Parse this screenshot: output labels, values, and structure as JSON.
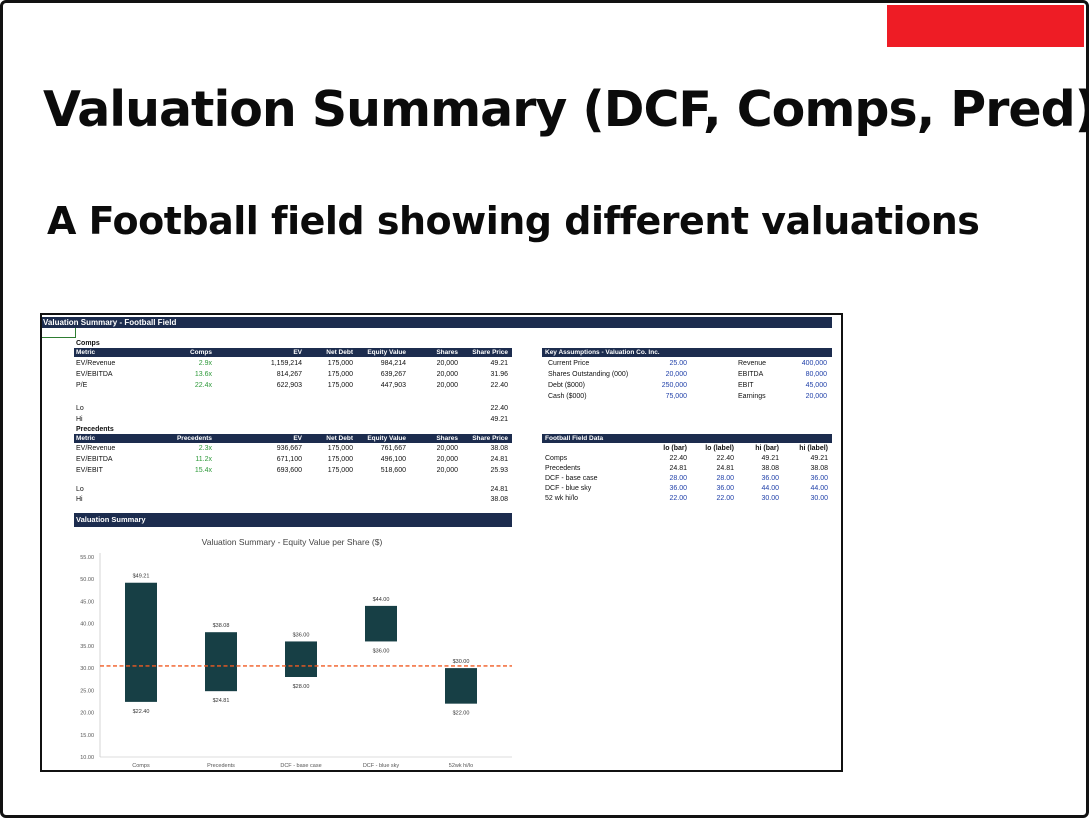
{
  "slide": {
    "title": "Valuation Summary (DCF, Comps, Pred)",
    "subtitle": "A Football field showing different valuations",
    "accent_color": "#ee1c25"
  },
  "sheet": {
    "header": "Valuation Summary - Football Field",
    "comps": {
      "section_label": "Comps",
      "columns": [
        "Metric",
        "Comps",
        "EV",
        "Net Debt",
        "Equity Value",
        "Shares",
        "Share Price"
      ],
      "rows": [
        [
          "EV/Revenue",
          "2.9x",
          "1,159,214",
          "175,000",
          "984,214",
          "20,000",
          "49.21"
        ],
        [
          "EV/EBITDA",
          "13.6x",
          "814,267",
          "175,000",
          "639,267",
          "20,000",
          "31.96"
        ],
        [
          "P/E",
          "22.4x",
          "622,903",
          "175,000",
          "447,903",
          "20,000",
          "22.40"
        ]
      ],
      "lo_label": "Lo",
      "lo_value": "22.40",
      "hi_label": "Hi",
      "hi_value": "49.21"
    },
    "precedents": {
      "section_label": "Precedents",
      "columns": [
        "Metric",
        "Precedents",
        "EV",
        "Net Debt",
        "Equity Value",
        "Shares",
        "Share Price"
      ],
      "rows": [
        [
          "EV/Revenue",
          "2.3x",
          "936,667",
          "175,000",
          "761,667",
          "20,000",
          "38.08"
        ],
        [
          "EV/EBITDA",
          "11.2x",
          "671,100",
          "175,000",
          "496,100",
          "20,000",
          "24.81"
        ],
        [
          "EV/EBIT",
          "15.4x",
          "693,600",
          "175,000",
          "518,600",
          "20,000",
          "25.93"
        ]
      ],
      "lo_label": "Lo",
      "lo_value": "24.81",
      "hi_label": "Hi",
      "hi_value": "38.08"
    },
    "assumptions": {
      "header": "Key Assumptions - Valuation Co. Inc.",
      "rows": [
        [
          "Current Price",
          "25.00",
          "Revenue",
          "400,000"
        ],
        [
          "Shares Outstanding (000)",
          "20,000",
          "EBITDA",
          "80,000"
        ],
        [
          "Debt ($000)",
          "250,000",
          "EBIT",
          "45,000"
        ],
        [
          "Cash ($000)",
          "75,000",
          "Earnings",
          "20,000"
        ]
      ]
    },
    "football_field": {
      "header": "Football Field Data",
      "columns": [
        "lo (bar)",
        "lo  (label)",
        "hi (bar)",
        "hi (label)"
      ],
      "rows": [
        [
          "Comps",
          "22.40",
          "22.40",
          "49.21",
          "49.21"
        ],
        [
          "Precedents",
          "24.81",
          "24.81",
          "38.08",
          "38.08"
        ],
        [
          "DCF - base case",
          "28.00",
          "28.00",
          "36.00",
          "36.00"
        ],
        [
          "DCF - blue sky",
          "36.00",
          "36.00",
          "44.00",
          "44.00"
        ],
        [
          "52 wk hi/lo",
          "22.00",
          "22.00",
          "30.00",
          "30.00"
        ]
      ]
    },
    "summary_band": "Valuation Summary"
  },
  "chart_data": {
    "type": "bar",
    "title": "Valuation Summary - Equity Value per Share ($)",
    "categories": [
      "Comps",
      "Precedents",
      "DCF - base case",
      "DCF - blue sky",
      "52wk hi/lo"
    ],
    "series": [
      {
        "name": "lo",
        "values": [
          22.4,
          24.81,
          28.0,
          36.0,
          22.0
        ]
      },
      {
        "name": "hi",
        "values": [
          49.21,
          38.08,
          36.0,
          44.0,
          30.0
        ]
      }
    ],
    "lo_labels": [
      "$22.40",
      "$24.81",
      "$28.00",
      "$36.00",
      "$22.00"
    ],
    "hi_labels": [
      "$49.21",
      "$38.08",
      "$36.00",
      "$44.00",
      "$30.00"
    ],
    "reference_line": 30.5,
    "ylim": [
      10,
      55
    ],
    "yticks": [
      "55.00",
      "50.00",
      "45.00",
      "40.00",
      "35.00",
      "30.00",
      "25.00",
      "20.00",
      "15.00",
      "10.00"
    ],
    "bar_color": "#173f45",
    "line_color": "#f05a22",
    "grid": false
  }
}
